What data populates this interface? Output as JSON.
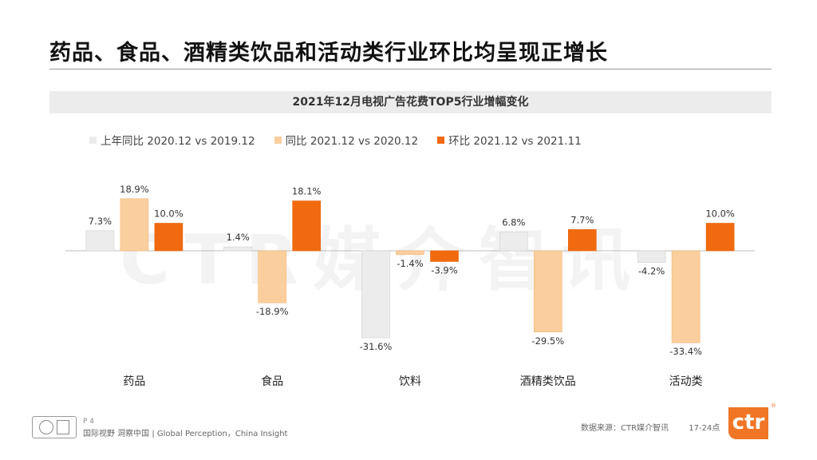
{
  "slide": {
    "title": "药品、食品、酒精类饮品和活动类行业环比均呈现正增长",
    "page_label": "P 4",
    "tagline": "国际视野  洞察中国 | Global Perception，China Insight",
    "source": "数据来源：CTR媒介智讯",
    "period": "17-24点",
    "logo_text": "ctr",
    "watermark": "CTR媒介智讯"
  },
  "colors": {
    "series1": "#ececec",
    "series2": "#fbcf9d",
    "series3": "#f26a10",
    "accent": "#f07524"
  },
  "chart_data": {
    "type": "bar",
    "title": "2021年12月电视广告花费TOP5行业增幅变化",
    "categories": [
      "药品",
      "食品",
      "饮料",
      "酒精类饮品",
      "活动类"
    ],
    "series": [
      {
        "name": "上年同比 2020.12 vs 2019.12",
        "values": [
          7.3,
          1.4,
          -31.6,
          6.8,
          -4.2
        ]
      },
      {
        "name": "同比 2021.12 vs 2020.12",
        "values": [
          18.9,
          -18.9,
          -1.4,
          -29.5,
          -33.4
        ]
      },
      {
        "name": "环比 2021.12 vs 2021.11",
        "values": [
          10.0,
          18.1,
          -3.9,
          7.7,
          10.0
        ]
      }
    ],
    "value_format": "percent_1dp",
    "legend_position": "top-left",
    "grid": false
  }
}
